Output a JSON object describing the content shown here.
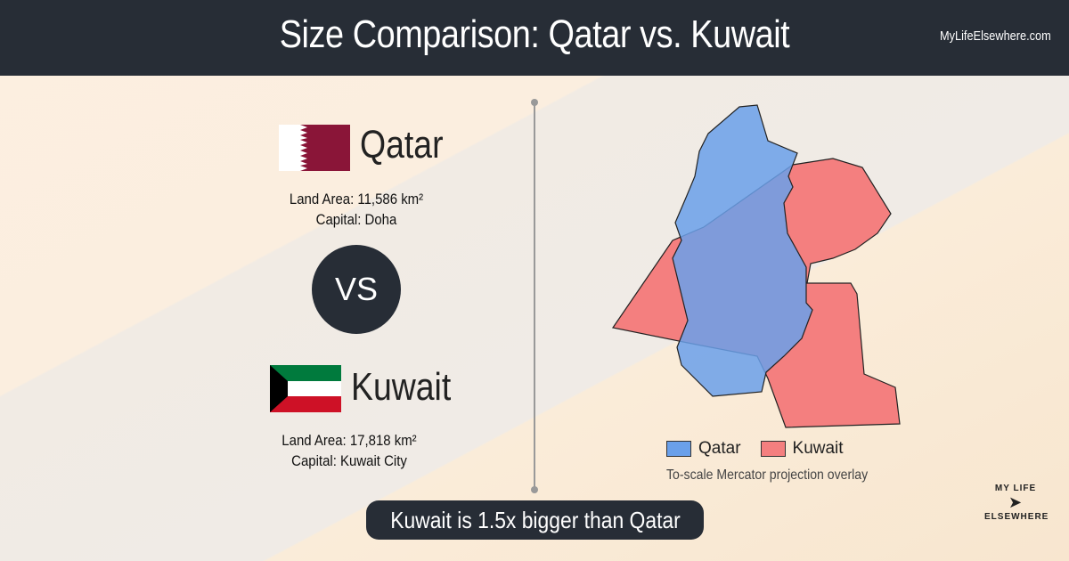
{
  "header": {
    "title": "Size Comparison: Qatar vs. Kuwait",
    "site": "MyLifeElsewhere.com"
  },
  "countries": [
    {
      "name": "Qatar",
      "area": "Land Area: 11,586 km²",
      "capital": "Capital: Doha"
    },
    {
      "name": "Kuwait",
      "area": "Land Area: 17,818 km²",
      "capital": "Capital: Kuwait City"
    }
  ],
  "vs": "VS",
  "legend": [
    "Qatar",
    "Kuwait"
  ],
  "map_note": "To-scale Mercator projection overlay",
  "summary": "Kuwait is 1.5x bigger than Qatar",
  "logo": [
    "MY LIFE",
    "ELSEWHERE"
  ]
}
